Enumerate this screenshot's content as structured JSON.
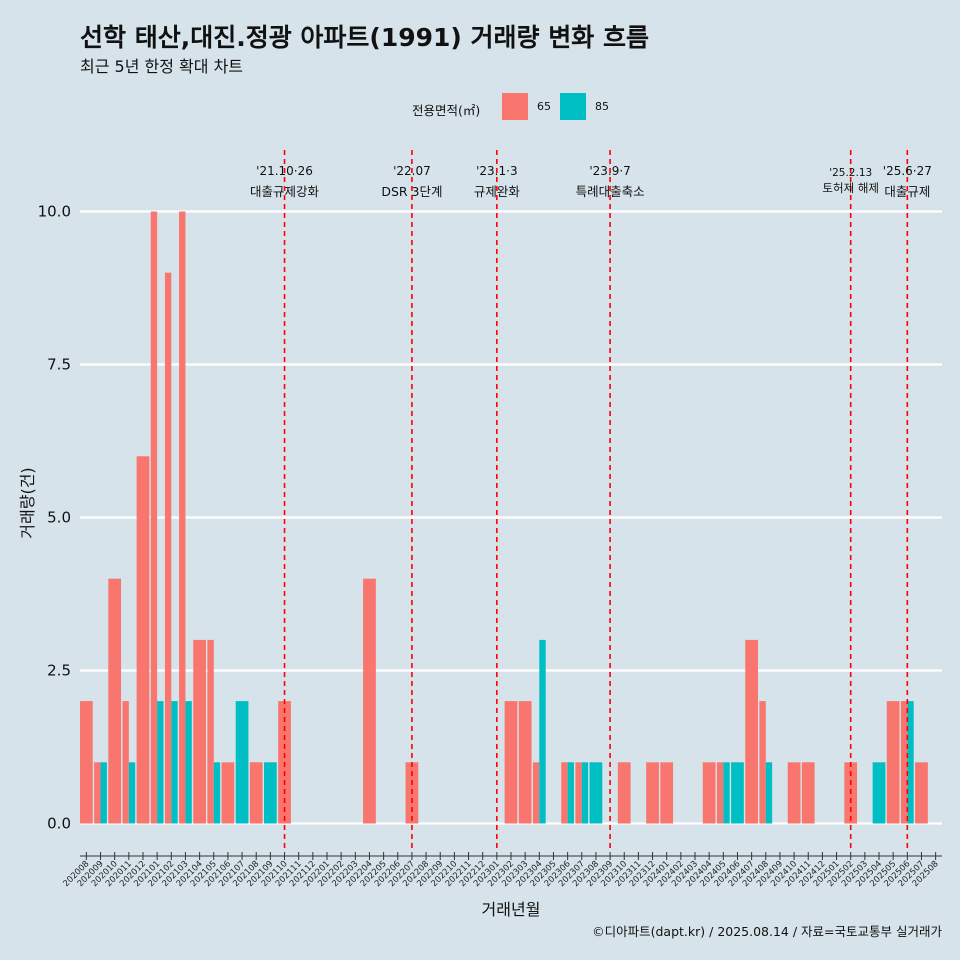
{
  "title": "선학 태산,대진.정광 아파트(1991) 거래량 변화 흐름",
  "subtitle": "최근 5년 한정 확대 차트",
  "caption": "©디아파트(dapt.kr) / 2025.08.14 / 자료=국토교통부 실거래가",
  "legend": {
    "title": "전용면적(㎡)",
    "items": [
      {
        "label": "65",
        "color": "#f8766d"
      },
      {
        "label": "85",
        "color": "#00bfc4"
      }
    ]
  },
  "chart_data": {
    "type": "bar",
    "xlabel": "거래년월",
    "ylabel": "거래량(건)",
    "ylim": [
      -0.45,
      11.0
    ],
    "yticks": [
      "0.0",
      "2.5",
      "5.0",
      "7.5",
      "10.0"
    ],
    "categories": [
      "202008",
      "202009",
      "202010",
      "202011",
      "202012",
      "202101",
      "202102",
      "202103",
      "202104",
      "202105",
      "202106",
      "202107",
      "202108",
      "202109",
      "202110",
      "202111",
      "202112",
      "202201",
      "202202",
      "202203",
      "202204",
      "202205",
      "202206",
      "202207",
      "202208",
      "202209",
      "202210",
      "202211",
      "202212",
      "202301",
      "202302",
      "202303",
      "202304",
      "202305",
      "202306",
      "202307",
      "202308",
      "202309",
      "202310",
      "202311",
      "202312",
      "202401",
      "202402",
      "202403",
      "202404",
      "202405",
      "202406",
      "202407",
      "202408",
      "202409",
      "202410",
      "202411",
      "202412",
      "202501",
      "202502",
      "202503",
      "202504",
      "202505",
      "202506",
      "202507",
      "202508"
    ],
    "series": [
      {
        "name": "65",
        "color": "#f8766d",
        "values": [
          2,
          1,
          4,
          2,
          6,
          10,
          9,
          10,
          3,
          3,
          1,
          0,
          1,
          0,
          2,
          0,
          0,
          0,
          0,
          0,
          4,
          0,
          0,
          1,
          0,
          0,
          0,
          0,
          0,
          0,
          2,
          2,
          1,
          0,
          1,
          1,
          0,
          0,
          1,
          0,
          1,
          1,
          0,
          0,
          1,
          1,
          0,
          3,
          2,
          0,
          1,
          1,
          0,
          0,
          1,
          0,
          0,
          2,
          2,
          1,
          0
        ]
      },
      {
        "name": "85",
        "color": "#00bfc4",
        "values": [
          0,
          1,
          0,
          1,
          0,
          2,
          2,
          2,
          0,
          1,
          0,
          2,
          0,
          1,
          0,
          0,
          0,
          0,
          0,
          0,
          0,
          0,
          0,
          0,
          0,
          0,
          0,
          0,
          0,
          0,
          0,
          0,
          3,
          0,
          1,
          1,
          1,
          0,
          0,
          0,
          0,
          0,
          0,
          0,
          0,
          1,
          1,
          0,
          1,
          0,
          0,
          0,
          0,
          0,
          0,
          0,
          1,
          0,
          2,
          0,
          0
        ]
      }
    ],
    "annotations": [
      {
        "x": "202110",
        "line1": "'21.10·26",
        "line2": "대출규제강화"
      },
      {
        "x": "202207",
        "line1": "'22.07",
        "line2": "DSR 3단계"
      },
      {
        "x": "202301",
        "line1": "'23.1·3",
        "line2": "규제완화"
      },
      {
        "x": "202309",
        "line1": "'23.9·7",
        "line2": "특례대출축소"
      },
      {
        "x": "202502",
        "line1": "'25.2.13",
        "line2": "토허제 해제"
      },
      {
        "x": "202506",
        "line1": "'25.6·27",
        "line2": "대출규제"
      }
    ],
    "grid": true,
    "legend_position": "top"
  }
}
